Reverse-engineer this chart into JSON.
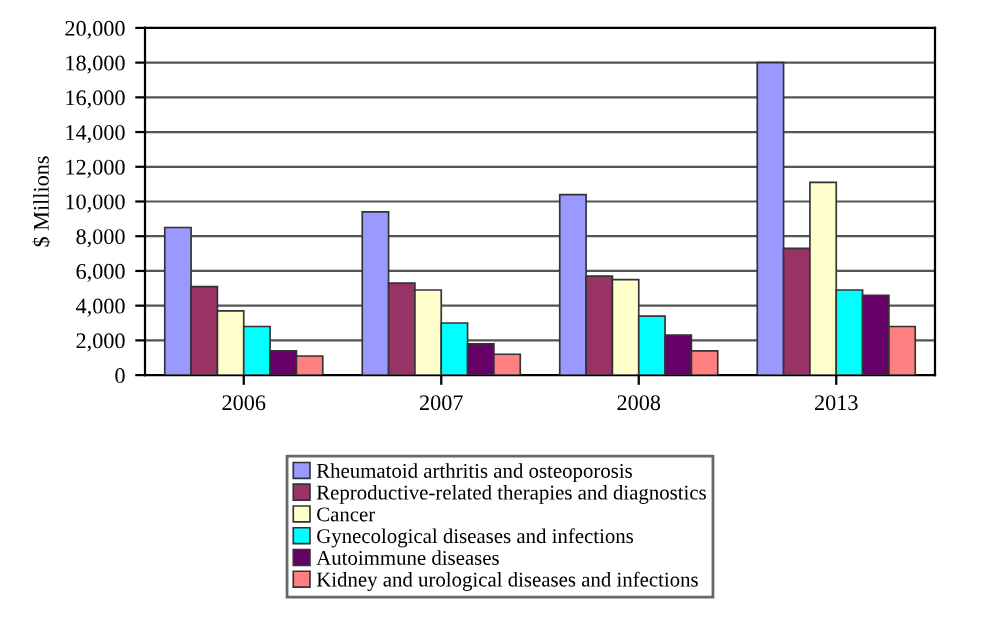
{
  "chart_data": {
    "type": "bar",
    "ylabel": "$ Millions",
    "categories": [
      "2006",
      "2007",
      "2008",
      "2013"
    ],
    "series": [
      {
        "name": "Rheumatoid arthritis and osteoporosis",
        "color": "#9999ff",
        "values": [
          8500,
          9400,
          10400,
          18000
        ]
      },
      {
        "name": "Reproductive-related therapies and diagnostics",
        "color": "#993366",
        "values": [
          5100,
          5300,
          5700,
          7300
        ]
      },
      {
        "name": "Cancer",
        "color": "#ffffcc",
        "values": [
          3700,
          4900,
          5500,
          11100
        ]
      },
      {
        "name": "Gynecological diseases and infections",
        "color": "#00ffff",
        "values": [
          2800,
          3000,
          3400,
          4900
        ]
      },
      {
        "name": "Autoimmune diseases",
        "color": "#660066",
        "values": [
          1400,
          1800,
          2300,
          4600
        ]
      },
      {
        "name": "Kidney and urological diseases and infections",
        "color": "#ff8080",
        "values": [
          1100,
          1200,
          1400,
          2800
        ]
      }
    ],
    "ylim": [
      0,
      20000
    ],
    "yticks": [
      {
        "value": 0,
        "label": "0"
      },
      {
        "value": 2000,
        "label": "2,000"
      },
      {
        "value": 4000,
        "label": "4,000"
      },
      {
        "value": 6000,
        "label": "6,000"
      },
      {
        "value": 8000,
        "label": "8,000"
      },
      {
        "value": 10000,
        "label": "10,000"
      },
      {
        "value": 12000,
        "label": "12,000"
      },
      {
        "value": 14000,
        "label": "14,000"
      },
      {
        "value": 16000,
        "label": "16,000"
      },
      {
        "value": 18000,
        "label": "18,000"
      },
      {
        "value": 20000,
        "label": "20,000"
      }
    ],
    "grid": "y",
    "legend": "bottom"
  }
}
